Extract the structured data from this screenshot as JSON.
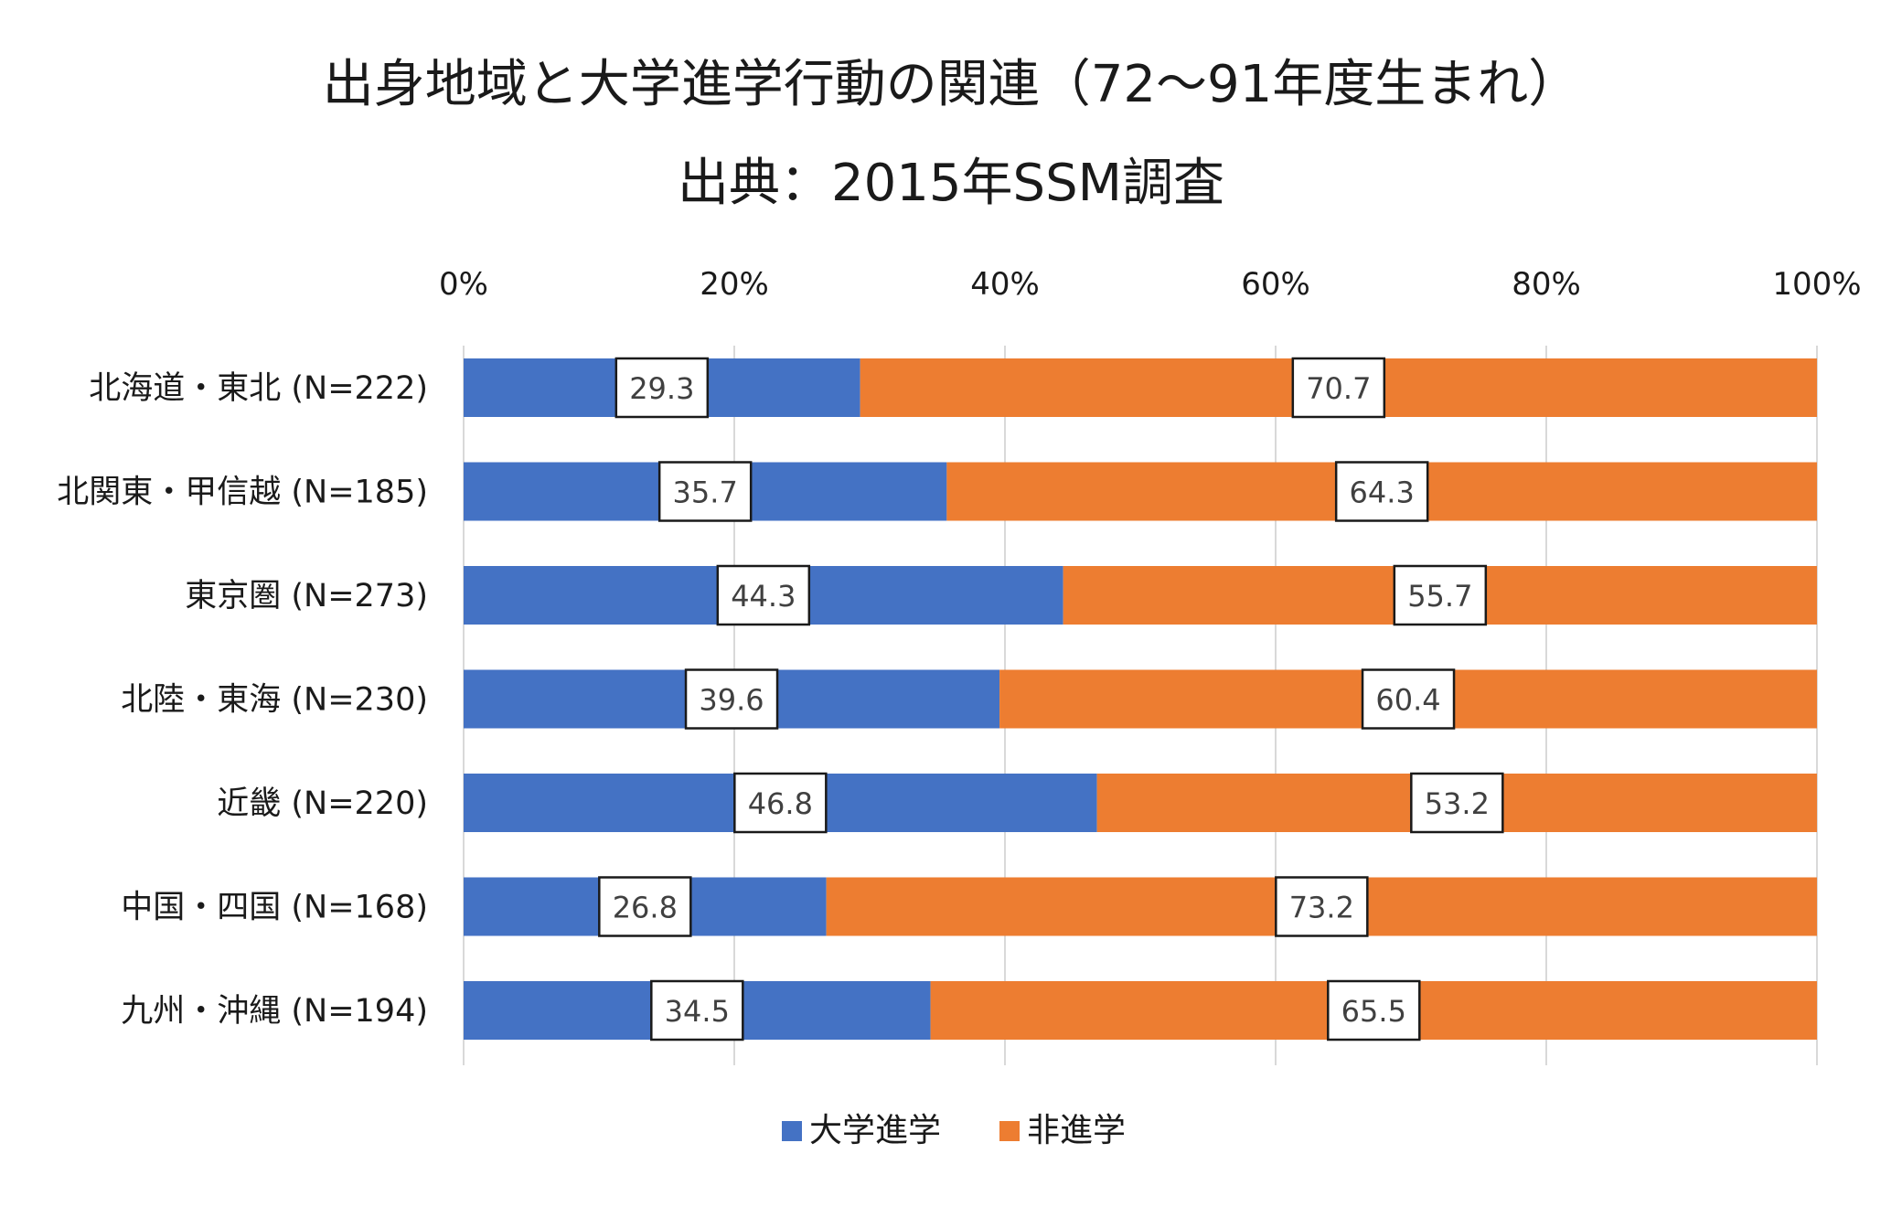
{
  "chart_data": {
    "type": "bar",
    "orientation": "horizontal",
    "stacked": true,
    "title": "出身地域と大学進学行動の関連（72〜91年度生まれ）",
    "subtitle": "出典：2015年SSM調査",
    "categories": [
      "北海道・東北 (N=222)",
      "北関東・甲信越 (N=185)",
      "東京圏 (N=273)",
      "北陸・東海 (N=230)",
      "近畿 (N=220)",
      "中国・四国 (N=168)",
      "九州・沖縄 (N=194)"
    ],
    "series": [
      {
        "name": "大学進学",
        "color": "#4472C4",
        "values": [
          29.3,
          35.7,
          44.3,
          39.6,
          46.8,
          26.8,
          34.5
        ],
        "labels": [
          "29.3",
          "35.7",
          "44.3",
          "39.6",
          "46.8",
          "26.8",
          "34.5"
        ]
      },
      {
        "name": "非進学",
        "color": "#ED7D31",
        "values": [
          70.7,
          64.3,
          55.7,
          60.4,
          53.2,
          73.2,
          65.5
        ],
        "labels": [
          "70.7",
          "64.3",
          "55.7",
          "60.4",
          "53.2",
          "73.2",
          "65.5"
        ]
      }
    ],
    "xlim": [
      0,
      100
    ],
    "xticks": [
      0,
      20,
      40,
      60,
      80,
      100
    ],
    "xtick_labels": [
      "0%",
      "20%",
      "40%",
      "60%",
      "80%",
      "100%"
    ],
    "xaxis_position": "top",
    "grid": true,
    "legend": "bottom-center"
  }
}
